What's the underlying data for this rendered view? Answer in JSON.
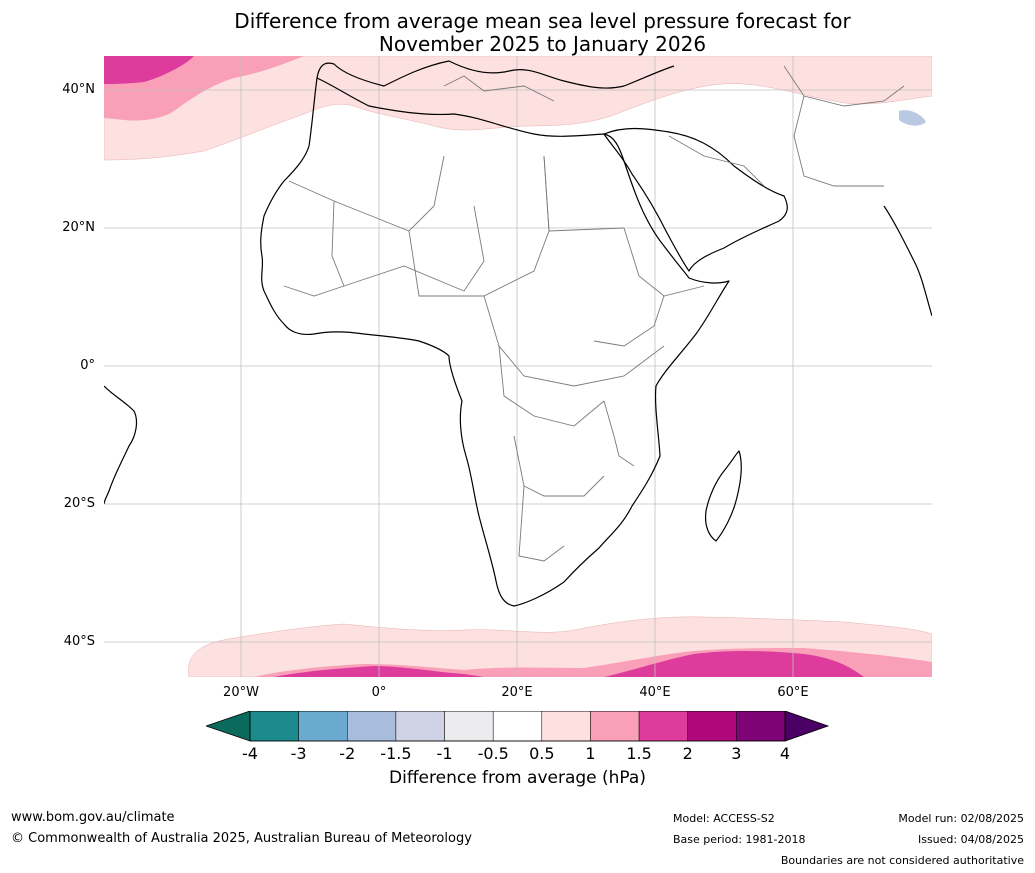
{
  "title_line1": "Difference from average mean sea level pressure forecast for",
  "title_line2": "November 2025 to January 2026",
  "lat_labels": [
    "40°N",
    "20°N",
    "0°",
    "20°S",
    "40°S"
  ],
  "lon_labels": [
    "20°W",
    "0°",
    "20°E",
    "40°E",
    "60°E"
  ],
  "colorbar": {
    "ticks": [
      "-4",
      "-3",
      "-2",
      "-1.5",
      "-1",
      "-0.5",
      "0.5",
      "1",
      "1.5",
      "2",
      "3",
      "4"
    ],
    "colors": [
      "#1a8a8c",
      "#6aaad0",
      "#a8bcdc",
      "#d0d2e6",
      "#ececee",
      "#ffffff",
      "#fde0e0",
      "#f9a0b8",
      "#dd3c9c",
      "#b0087c",
      "#7e0475"
    ],
    "under_color": "#0a6a5c",
    "over_color": "#4a0064",
    "label": "Difference from average (hPa)"
  },
  "footer": {
    "url": "www.bom.gov.au/climate",
    "copyright": "© Commonwealth of Australia 2025, Australian Bureau of Meteorology",
    "model": "Model: ACCESS-S2",
    "base_period": "Base period: 1981-2018",
    "model_run": "Model run: 02/08/2025",
    "issued": "Issued: 04/08/2025",
    "disclaimer": "Boundaries are not considered authoritative"
  }
}
